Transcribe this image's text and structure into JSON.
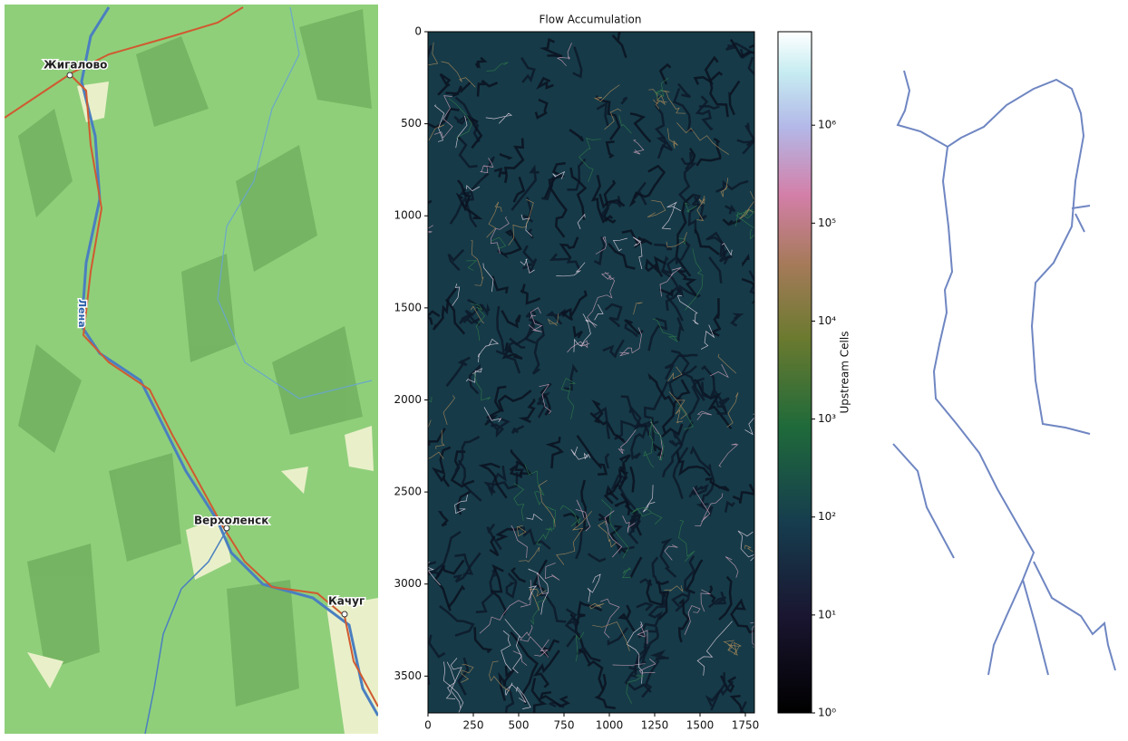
{
  "map": {
    "labels": [
      "Жигалово",
      "Верхоленск",
      "Качуг",
      "Лена"
    ]
  },
  "chart_data": {
    "type": "heatmap",
    "title": "Flow Accumulation",
    "xlim": [
      0,
      1800
    ],
    "xticks": [
      0,
      250,
      500,
      750,
      1000,
      1250,
      1500,
      1750
    ],
    "ylim": [
      0,
      3700
    ],
    "yticks": [
      0,
      500,
      1000,
      1500,
      2000,
      2500,
      3000,
      3500
    ],
    "colorbar": {
      "label": "Upstream Cells",
      "log_scale": true,
      "lim": [
        1,
        9000000
      ],
      "ticks": [
        {
          "value": 1,
          "label": "10⁰"
        },
        {
          "value": 10,
          "label": "10¹"
        },
        {
          "value": 100,
          "label": "10²"
        },
        {
          "value": 1000,
          "label": "10³"
        },
        {
          "value": 10000,
          "label": "10⁴"
        },
        {
          "value": 100000,
          "label": "10⁵"
        },
        {
          "value": 1000000,
          "label": "10⁶"
        }
      ]
    }
  }
}
